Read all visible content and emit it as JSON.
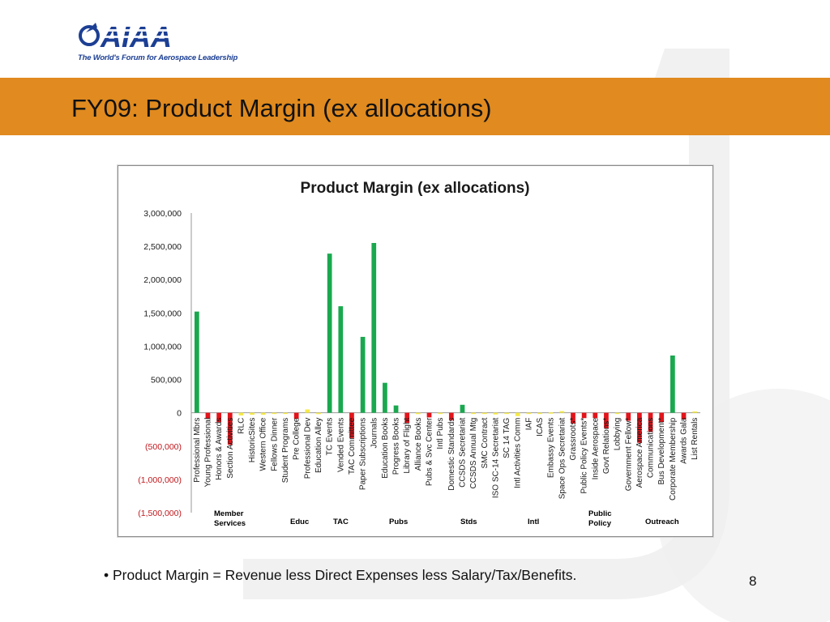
{
  "slide": {
    "title": "FY09:  Product Margin (ex allocations)",
    "footnote": "• Product Margin = Revenue less Direct Expenses less Salary/Tax/Benefits.",
    "page_number": "8"
  },
  "logo": {
    "wordmark": "AIAA",
    "tagline": "The World's Forum for Aerospace Leadership"
  },
  "colors": {
    "banner": "#e08a1f",
    "positive": "#1aa84f",
    "negative": "#e3141b",
    "near_zero": "#f5e94a",
    "logo": "#1c3f94"
  },
  "chart_data": {
    "type": "bar",
    "title": "Product Margin (ex allocations)",
    "ylim": [
      -1500000,
      3000000
    ],
    "yticks": [
      3000000,
      2500000,
      2000000,
      1500000,
      1000000,
      500000,
      0,
      -500000,
      -1000000,
      -1500000
    ],
    "ytick_labels": [
      "3,000,000",
      "2,500,000",
      "2,000,000",
      "1,500,000",
      "1,000,000",
      "500,000",
      "0",
      "(500,000)",
      "(1,000,000)",
      "(1,500,000)"
    ],
    "categories": [
      "Professional Mbrs",
      "Young Professional",
      "Honors & Awards",
      "Section Activities",
      "RLC",
      "HistoricSites",
      "Western Office",
      "Fellows Dinner",
      "Student Programs",
      "Pre College",
      "Professional Dev",
      "Education Alley",
      "TC Events",
      "Vended Events",
      "TAC Committee",
      "Paper Subscriptions",
      "Journals",
      "Education Books",
      "Progress Books",
      "Library of Flight",
      "Alliance Books",
      "Pubs & Svc Center",
      "Intl Pubs",
      "Domestic Standards",
      "CCSDS Secretariat",
      "CCSDS Annual Mtg",
      "SMC Contract",
      "ISO SC-14 Secretariat",
      "SC 14 TAG",
      "Intl Activities Comm",
      "IAF",
      "ICAS",
      "Embassy Events",
      "Space Ops Secretariat",
      "Grassroots*",
      "Public Policy Events*",
      "Inside Aerospace",
      "Govt Relations*",
      "Lobbying",
      "Government Fellow*",
      "Aerospace America",
      "Communications",
      "Bus Development*",
      "Corporate Membership",
      "Awards Gala",
      "List Rentals"
    ],
    "values": [
      1520000,
      -90000,
      -140000,
      -480000,
      -40000,
      -30000,
      -30000,
      -10000,
      -15000,
      -90000,
      50000,
      -20000,
      2390000,
      1600000,
      -380000,
      1140000,
      2550000,
      450000,
      110000,
      -150000,
      -20000,
      -70000,
      -10000,
      -110000,
      120000,
      -10000,
      -10000,
      -25000,
      -10000,
      -50000,
      -10000,
      -5000,
      5000,
      25000,
      -160000,
      -80000,
      -80000,
      -230000,
      -10000,
      -120000,
      -450000,
      -290000,
      -140000,
      860000,
      -100000,
      20000
    ],
    "groups": [
      {
        "label": "Member\nServices"
      },
      {
        "label": "Educ"
      },
      {
        "label": "TAC"
      },
      {
        "label": "Pubs"
      },
      {
        "label": "Stds"
      },
      {
        "label": "Intl"
      },
      {
        "label": "Public\nPolicy"
      },
      {
        "label": "Outreach"
      }
    ]
  }
}
